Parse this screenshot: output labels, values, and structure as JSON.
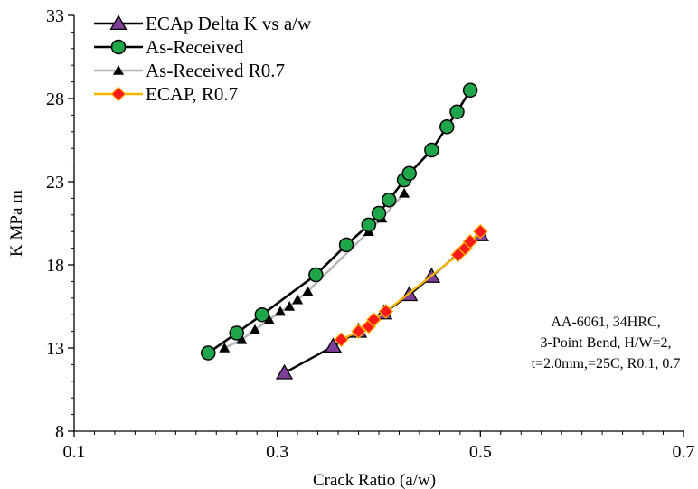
{
  "chart_data": {
    "type": "scatter",
    "title": "",
    "xlabel": "Crack Ratio (a/w)",
    "ylabel": "K MPa m",
    "xlim": [
      0.1,
      0.7
    ],
    "ylim": [
      8,
      33
    ],
    "xticks": [
      0.1,
      0.3,
      0.5,
      0.7
    ],
    "yticks": [
      8,
      13,
      18,
      23,
      28,
      33
    ],
    "xtick_labels": [
      "0.1",
      "0.3",
      "0.5",
      "0.7"
    ],
    "ytick_labels": [
      "8",
      "13",
      "18",
      "23",
      "28",
      "33"
    ],
    "grid": false,
    "legend_position": "top-left",
    "annotation": [
      "AA-6061, 34HRC,",
      "3-Point Bend, H/W=2,",
      "t=2.0mm,=25C, R0.1, 0.7"
    ],
    "series": [
      {
        "name": "ECAp Delta K vs a/w",
        "marker": "triangle",
        "line_color": "#000000",
        "marker_color": "#7f3f98",
        "x": [
          0.307,
          0.355,
          0.38,
          0.405,
          0.43,
          0.452,
          0.5
        ],
        "y": [
          11.5,
          13.1,
          14.0,
          15.1,
          16.2,
          17.3,
          19.8
        ]
      },
      {
        "name": "As-Received",
        "marker": "circle",
        "line_color": "#000000",
        "marker_color": "#1fa64a",
        "x": [
          0.232,
          0.26,
          0.285,
          0.338,
          0.368,
          0.39,
          0.4,
          0.41,
          0.425,
          0.43,
          0.452,
          0.467,
          0.477,
          0.49
        ],
        "y": [
          12.7,
          13.9,
          15.0,
          17.4,
          19.2,
          20.4,
          21.1,
          21.9,
          23.1,
          23.5,
          24.9,
          26.3,
          27.2,
          28.5
        ]
      },
      {
        "name": "As-Received R0.7",
        "marker": "small-triangle",
        "line_color": "#b4b4b4",
        "marker_color": "#000000",
        "x": [
          0.248,
          0.265,
          0.278,
          0.292,
          0.303,
          0.312,
          0.32,
          0.33,
          0.39,
          0.403,
          0.425
        ],
        "y": [
          13.0,
          13.5,
          14.1,
          14.7,
          15.2,
          15.5,
          15.9,
          16.4,
          20.0,
          20.8,
          22.3
        ]
      },
      {
        "name": "ECAP, R0.7",
        "marker": "diamond",
        "line_color": "#f5b400",
        "marker_color": "#ff1a1a",
        "x": [
          0.363,
          0.38,
          0.39,
          0.395,
          0.407,
          0.478,
          0.485,
          0.49,
          0.5
        ],
        "y": [
          13.5,
          14.0,
          14.3,
          14.7,
          15.2,
          18.6,
          19.0,
          19.4,
          20.0
        ]
      }
    ]
  }
}
